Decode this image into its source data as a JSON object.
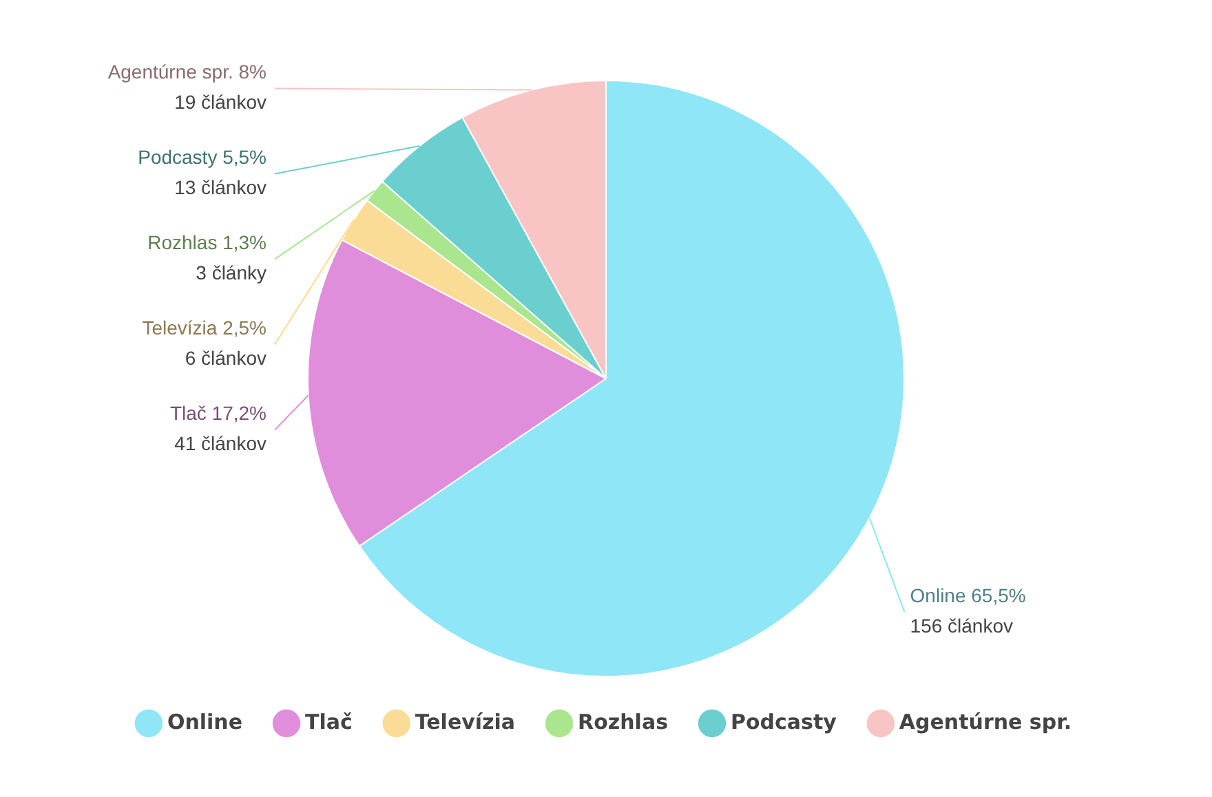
{
  "chart_data": {
    "type": "pie",
    "categories": [
      "Online",
      "Tlač",
      "Televízia",
      "Rozhlas",
      "Podcasty",
      "Agentúrne spr."
    ],
    "values": [
      65.5,
      17.2,
      2.5,
      1.3,
      5.5,
      8
    ],
    "colors": [
      "#8ee6f7",
      "#e08edc",
      "#fbdc96",
      "#a9e68e",
      "#6ccfcf",
      "#f9c4c4"
    ],
    "value_labels": [
      "65,5%",
      "17,2%",
      "2,5%",
      "1,3%",
      "5,5%",
      "8%"
    ],
    "annotations": [
      {
        "text": "156 článkov",
        "x": "Online"
      },
      {
        "text": "41 článkov",
        "x": "Tlač"
      },
      {
        "text": "6 článkov",
        "x": "Televízia"
      },
      {
        "text": "3 články",
        "x": "Rozhlas"
      },
      {
        "text": "13 článkov",
        "x": "Podcasty"
      },
      {
        "text": "19 článkov",
        "x": "Agentúrne spr."
      }
    ],
    "legend": "bottom"
  }
}
